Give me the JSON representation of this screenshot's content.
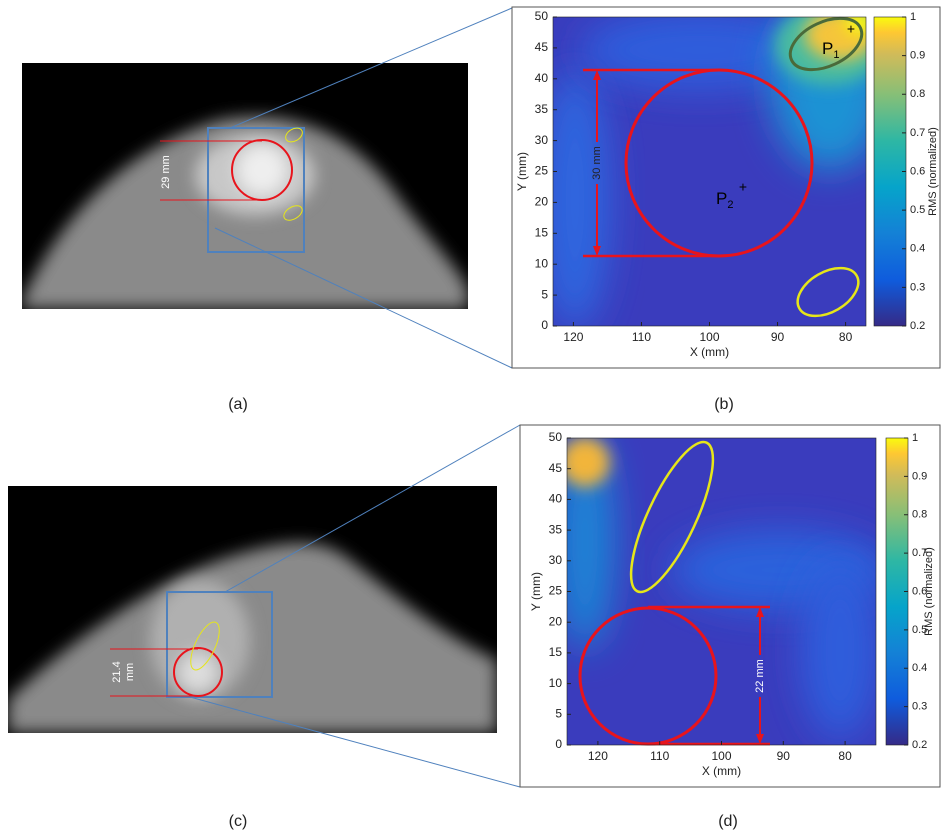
{
  "panels": [
    {
      "label": "(a)",
      "measure": [
        "29 mm"
      ]
    },
    {
      "label": "(b)",
      "x_axis": {
        "label": "X (mm)",
        "lim": [
          123,
          77
        ],
        "ticks": [
          120,
          110,
          100,
          90,
          80
        ]
      },
      "y_axis": {
        "label": "Y (mm)",
        "lim": [
          0,
          50
        ],
        "ticks": [
          0,
          5,
          10,
          15,
          20,
          25,
          30,
          35,
          40,
          45,
          50
        ]
      },
      "colorbar": {
        "label": "RMS (normalized)",
        "lim": [
          0.2,
          1
        ],
        "ticks": [
          0.2,
          0.3,
          0.4,
          0.5,
          0.6,
          0.7,
          0.8,
          0.9,
          1
        ]
      },
      "measure": [
        "30 mm"
      ],
      "points": [
        {
          "letter": "P",
          "sub": "1"
        },
        {
          "letter": "P",
          "sub": "2"
        }
      ]
    },
    {
      "label": "(c)",
      "measure": [
        "21.4",
        "mm"
      ]
    },
    {
      "label": "(d)",
      "x_axis": {
        "label": "X (mm)",
        "lim": [
          125,
          75
        ],
        "ticks": [
          120,
          110,
          100,
          90,
          80
        ]
      },
      "y_axis": {
        "label": "Y (mm)",
        "lim": [
          0,
          50
        ],
        "ticks": [
          0,
          5,
          10,
          15,
          20,
          25,
          30,
          35,
          40,
          45,
          50
        ]
      },
      "colorbar": {
        "label": "RMS (normalized)",
        "lim": [
          0.2,
          1
        ],
        "ticks": [
          0.2,
          0.3,
          0.4,
          0.5,
          0.6,
          0.7,
          0.8,
          0.9,
          1
        ]
      },
      "measure": [
        "22 mm"
      ]
    }
  ]
}
